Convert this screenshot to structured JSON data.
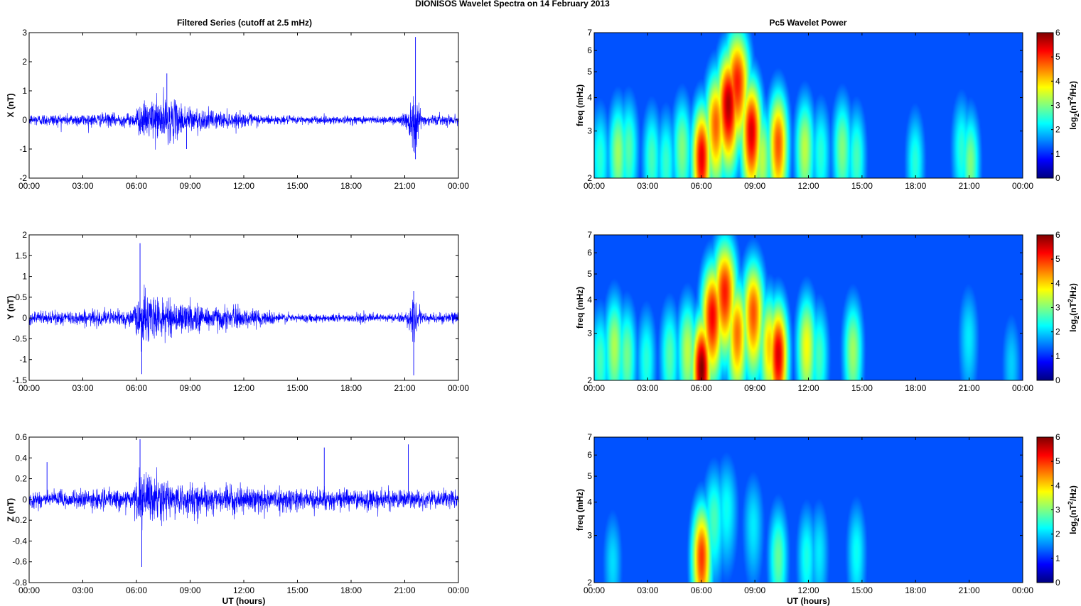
{
  "figure": {
    "title": "DIONISOS Wavelet Spectra on 14 February  2013",
    "left_column_title": "Filtered Series (cutoff at 2.5 mHz)",
    "right_column_title": "Pc5 Wavelet Power",
    "colorbar_label": "log2(nT2/Hz)",
    "colors": {
      "trace": "#0000ff",
      "background_power": "#00008f"
    }
  },
  "chart_data": [
    {
      "type": "line",
      "panel": "time-series-x",
      "ylabel": "X (nT)",
      "xlabel": "",
      "x_range_hours": [
        0,
        24
      ],
      "xticks": [
        "00:00",
        "03:00",
        "06:00",
        "09:00",
        "12:00",
        "15:00",
        "18:00",
        "21:00",
        "00:00"
      ],
      "ylim": [
        -2,
        3
      ],
      "yticks": [
        "-2",
        "-1",
        "0",
        "1",
        "2",
        "3"
      ],
      "series": [
        {
          "amplitude_profile": [
            {
              "t": 0,
              "amp": 0.22
            },
            {
              "t": 5.8,
              "amp": 0.25
            },
            {
              "t": 6.1,
              "amp": 0.55
            },
            {
              "t": 7.5,
              "amp": 0.9
            },
            {
              "t": 8.5,
              "amp": 0.6
            },
            {
              "t": 10,
              "amp": 0.35
            },
            {
              "t": 14,
              "amp": 0.15
            },
            {
              "t": 20.7,
              "amp": 0.15
            },
            {
              "t": 21.2,
              "amp": 0.55
            },
            {
              "t": 21.5,
              "amp": 1.2
            },
            {
              "t": 22,
              "amp": 0.2
            },
            {
              "t": 24,
              "amp": 0.18
            }
          ],
          "extremes": [
            {
              "t": 7.7,
              "y": 1.6
            },
            {
              "t": 21.6,
              "y": 2.85
            },
            {
              "t": 21.6,
              "y": -1.35
            },
            {
              "t": 8.8,
              "y": -1.0
            }
          ]
        }
      ]
    },
    {
      "type": "line",
      "panel": "time-series-y",
      "ylabel": "Y (nT)",
      "xlabel": "",
      "x_range_hours": [
        0,
        24
      ],
      "xticks": [
        "00:00",
        "03:00",
        "06:00",
        "09:00",
        "12:00",
        "15:00",
        "18:00",
        "21:00",
        "00:00"
      ],
      "ylim": [
        -1.5,
        2
      ],
      "yticks": [
        "-1.5",
        "-1",
        "-0.5",
        "0",
        "0.5",
        "1",
        "1.5",
        "2"
      ],
      "series": [
        {
          "amplitude_profile": [
            {
              "t": 0,
              "amp": 0.16
            },
            {
              "t": 5.8,
              "amp": 0.22
            },
            {
              "t": 6.2,
              "amp": 0.75
            },
            {
              "t": 7.5,
              "amp": 0.45
            },
            {
              "t": 11,
              "amp": 0.3
            },
            {
              "t": 15,
              "amp": 0.1
            },
            {
              "t": 21,
              "amp": 0.12
            },
            {
              "t": 21.5,
              "amp": 0.45
            },
            {
              "t": 22,
              "amp": 0.14
            },
            {
              "t": 24,
              "amp": 0.14
            }
          ],
          "extremes": [
            {
              "t": 6.2,
              "y": 1.8
            },
            {
              "t": 6.3,
              "y": -1.35
            },
            {
              "t": 21.5,
              "y": -1.38
            },
            {
              "t": 21.5,
              "y": 0.65
            }
          ]
        }
      ]
    },
    {
      "type": "line",
      "panel": "time-series-z",
      "ylabel": "Z (nT)",
      "xlabel": "UT (hours)",
      "x_range_hours": [
        0,
        24
      ],
      "xticks": [
        "00:00",
        "03:00",
        "06:00",
        "09:00",
        "12:00",
        "15:00",
        "18:00",
        "21:00",
        "00:00"
      ],
      "ylim": [
        -0.8,
        0.6
      ],
      "yticks": [
        "-0.8",
        "-0.6",
        "-0.4",
        "-0.2",
        "0",
        "0.2",
        "0.4",
        "0.6"
      ],
      "series": [
        {
          "amplitude_profile": [
            {
              "t": 0,
              "amp": 0.09
            },
            {
              "t": 5.8,
              "amp": 0.1
            },
            {
              "t": 6.2,
              "amp": 0.3
            },
            {
              "t": 8,
              "amp": 0.17
            },
            {
              "t": 12,
              "amp": 0.12
            },
            {
              "t": 24,
              "amp": 0.09
            }
          ],
          "extremes": [
            {
              "t": 6.2,
              "y": 0.58
            },
            {
              "t": 6.3,
              "y": -0.65
            },
            {
              "t": 1.0,
              "y": 0.36
            },
            {
              "t": 16.5,
              "y": 0.5
            },
            {
              "t": 21.2,
              "y": 0.53
            }
          ]
        }
      ]
    },
    {
      "type": "heatmap",
      "panel": "wavelet-x",
      "ylabel": "freq (mHz)",
      "xlabel": "",
      "x_range_hours": [
        0,
        24
      ],
      "xticks": [
        "00:00",
        "03:00",
        "06:00",
        "09:00",
        "12:00",
        "15:00",
        "18:00",
        "21:00",
        "00:00"
      ],
      "yscale": "log",
      "ylim": [
        2,
        7
      ],
      "yticks": [
        "2",
        "3",
        "4",
        "5",
        "6",
        "7"
      ],
      "colorbar": {
        "range": [
          0,
          6
        ],
        "ticks": [
          "0",
          "1",
          "2",
          "3",
          "4",
          "5",
          "6"
        ],
        "label": "log2(nT2/Hz)"
      },
      "blobs": [
        {
          "t": 0.3,
          "f": 2.4,
          "power": 2.0
        },
        {
          "t": 1.3,
          "f": 2.5,
          "power": 2.8
        },
        {
          "t": 1.9,
          "f": 2.6,
          "power": 2.3
        },
        {
          "t": 3.2,
          "f": 2.4,
          "power": 2.2
        },
        {
          "t": 4.0,
          "f": 2.3,
          "power": 2.1
        },
        {
          "t": 4.9,
          "f": 2.6,
          "power": 2.6
        },
        {
          "t": 6.0,
          "f": 2.4,
          "power": 5.3
        },
        {
          "t": 6.8,
          "f": 3.2,
          "power": 4.5
        },
        {
          "t": 7.5,
          "f": 3.8,
          "power": 5.7
        },
        {
          "t": 8.0,
          "f": 4.6,
          "power": 5.0
        },
        {
          "t": 8.8,
          "f": 3.0,
          "power": 5.4
        },
        {
          "t": 9.4,
          "f": 2.4,
          "power": 3.0
        },
        {
          "t": 10.3,
          "f": 2.7,
          "power": 4.6
        },
        {
          "t": 11.8,
          "f": 2.6,
          "power": 3.0
        },
        {
          "t": 12.7,
          "f": 2.5,
          "power": 2.0
        },
        {
          "t": 13.9,
          "f": 2.6,
          "power": 2.6
        },
        {
          "t": 14.7,
          "f": 2.4,
          "power": 2.2
        },
        {
          "t": 18.0,
          "f": 2.3,
          "power": 2.0
        },
        {
          "t": 20.6,
          "f": 2.6,
          "power": 2.0
        },
        {
          "t": 21.1,
          "f": 2.3,
          "power": 2.6
        }
      ]
    },
    {
      "type": "heatmap",
      "panel": "wavelet-y",
      "ylabel": "freq (mHz)",
      "xlabel": "",
      "x_range_hours": [
        0,
        24
      ],
      "xticks": [
        "00:00",
        "03:00",
        "06:00",
        "09:00",
        "12:00",
        "15:00",
        "18:00",
        "21:00",
        "00:00"
      ],
      "yscale": "log",
      "ylim": [
        2,
        7
      ],
      "yticks": [
        "2",
        "3",
        "4",
        "5",
        "6",
        "7"
      ],
      "colorbar": {
        "range": [
          0,
          6
        ],
        "ticks": [
          "0",
          "1",
          "2",
          "3",
          "4",
          "5",
          "6"
        ],
        "label": "log2(nT2/Hz)"
      },
      "blobs": [
        {
          "t": 0.3,
          "f": 2.4,
          "power": 2.2
        },
        {
          "t": 1.1,
          "f": 2.7,
          "power": 2.9
        },
        {
          "t": 1.8,
          "f": 2.5,
          "power": 2.5
        },
        {
          "t": 2.9,
          "f": 2.4,
          "power": 2.0
        },
        {
          "t": 4.2,
          "f": 2.5,
          "power": 2.3
        },
        {
          "t": 5.2,
          "f": 2.6,
          "power": 3.0
        },
        {
          "t": 6.0,
          "f": 2.2,
          "power": 6.0
        },
        {
          "t": 6.6,
          "f": 3.5,
          "power": 5.2
        },
        {
          "t": 7.3,
          "f": 4.3,
          "power": 5.0
        },
        {
          "t": 8.0,
          "f": 3.0,
          "power": 4.4
        },
        {
          "t": 8.9,
          "f": 3.6,
          "power": 4.6
        },
        {
          "t": 9.8,
          "f": 2.7,
          "power": 3.8
        },
        {
          "t": 10.3,
          "f": 2.5,
          "power": 5.4
        },
        {
          "t": 11.9,
          "f": 2.7,
          "power": 3.4
        },
        {
          "t": 12.6,
          "f": 2.5,
          "power": 2.2
        },
        {
          "t": 14.5,
          "f": 2.6,
          "power": 2.8
        },
        {
          "t": 21.0,
          "f": 2.9,
          "power": 1.6
        },
        {
          "t": 23.4,
          "f": 2.3,
          "power": 1.4
        }
      ]
    },
    {
      "type": "heatmap",
      "panel": "wavelet-z",
      "ylabel": "freq (mHz)",
      "xlabel": "UT (hours)",
      "x_range_hours": [
        0,
        24
      ],
      "xticks": [
        "00:00",
        "03:00",
        "06:00",
        "09:00",
        "12:00",
        "15:00",
        "18:00",
        "21:00",
        "00:00"
      ],
      "yscale": "log",
      "ylim": [
        2,
        7
      ],
      "yticks": [
        "2",
        "3",
        "4",
        "5",
        "6",
        "7"
      ],
      "colorbar": {
        "range": [
          0,
          6
        ],
        "ticks": [
          "0",
          "1",
          "2",
          "3",
          "4",
          "5",
          "6"
        ],
        "label": "log2(nT2/Hz)"
      },
      "blobs": [
        {
          "t": 1.0,
          "f": 2.4,
          "power": 1.5
        },
        {
          "t": 6.0,
          "f": 2.5,
          "power": 4.8
        },
        {
          "t": 6.7,
          "f": 3.5,
          "power": 2.2
        },
        {
          "t": 7.4,
          "f": 3.8,
          "power": 1.8
        },
        {
          "t": 8.9,
          "f": 3.3,
          "power": 1.6
        },
        {
          "t": 10.3,
          "f": 2.5,
          "power": 2.4
        },
        {
          "t": 11.9,
          "f": 2.5,
          "power": 1.9
        },
        {
          "t": 12.6,
          "f": 2.6,
          "power": 1.6
        },
        {
          "t": 14.7,
          "f": 2.6,
          "power": 1.8
        }
      ]
    }
  ]
}
